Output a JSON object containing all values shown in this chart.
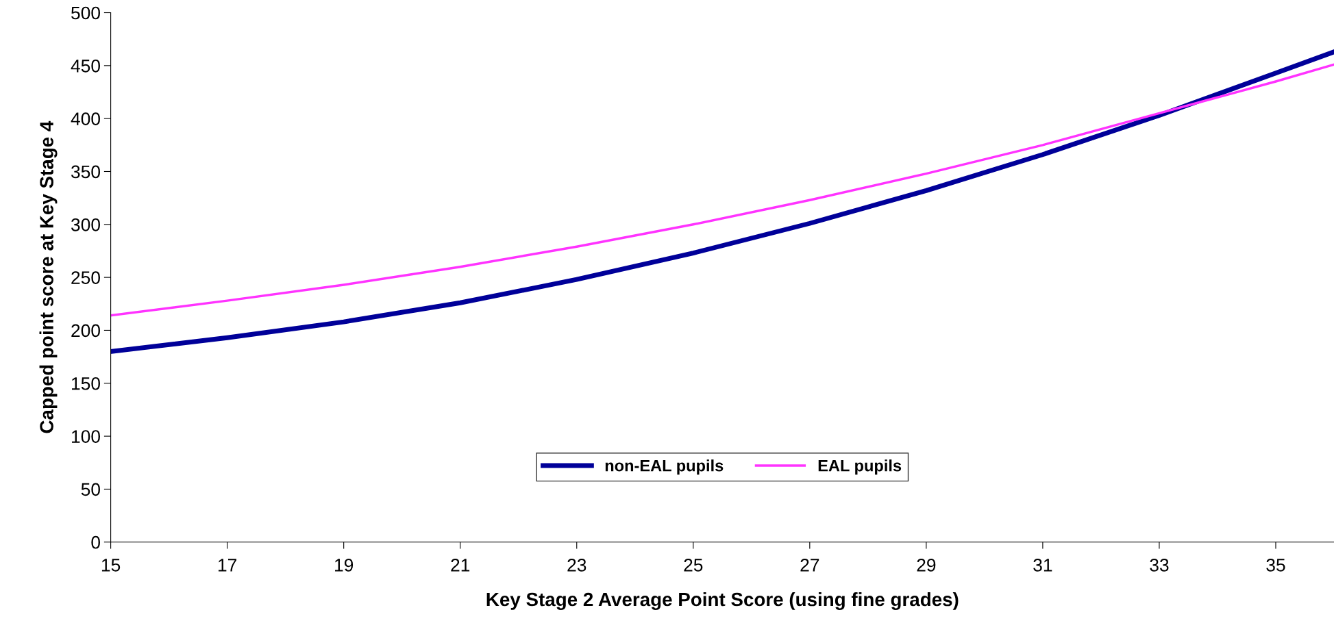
{
  "chart_data": {
    "type": "line",
    "xlabel": "Key Stage 2 Average Point Score (using fine grades)",
    "ylabel": "Capped point score at Key Stage 4",
    "x": [
      15,
      17,
      19,
      21,
      23,
      25,
      27,
      29,
      31,
      33,
      35,
      36
    ],
    "series": [
      {
        "name": "non-EAL pupils",
        "color": "#000099",
        "values": [
          180,
          193,
          208,
          226,
          248,
          273,
          301,
          332,
          366,
          403,
          443,
          463
        ]
      },
      {
        "name": "EAL pupils",
        "color": "#ff33ff",
        "values": [
          214,
          228,
          243,
          260,
          279,
          300,
          323,
          348,
          375,
          405,
          435,
          451
        ]
      }
    ],
    "xlim": [
      15,
      36
    ],
    "xticks": [
      15,
      17,
      19,
      21,
      23,
      25,
      27,
      29,
      31,
      33,
      35
    ],
    "ylim": [
      0,
      500
    ],
    "yticks": [
      0,
      50,
      100,
      150,
      200,
      250,
      300,
      350,
      400,
      450,
      500
    ],
    "grid": false,
    "legend": "bottom",
    "marker": "none",
    "line_style": "solid"
  }
}
